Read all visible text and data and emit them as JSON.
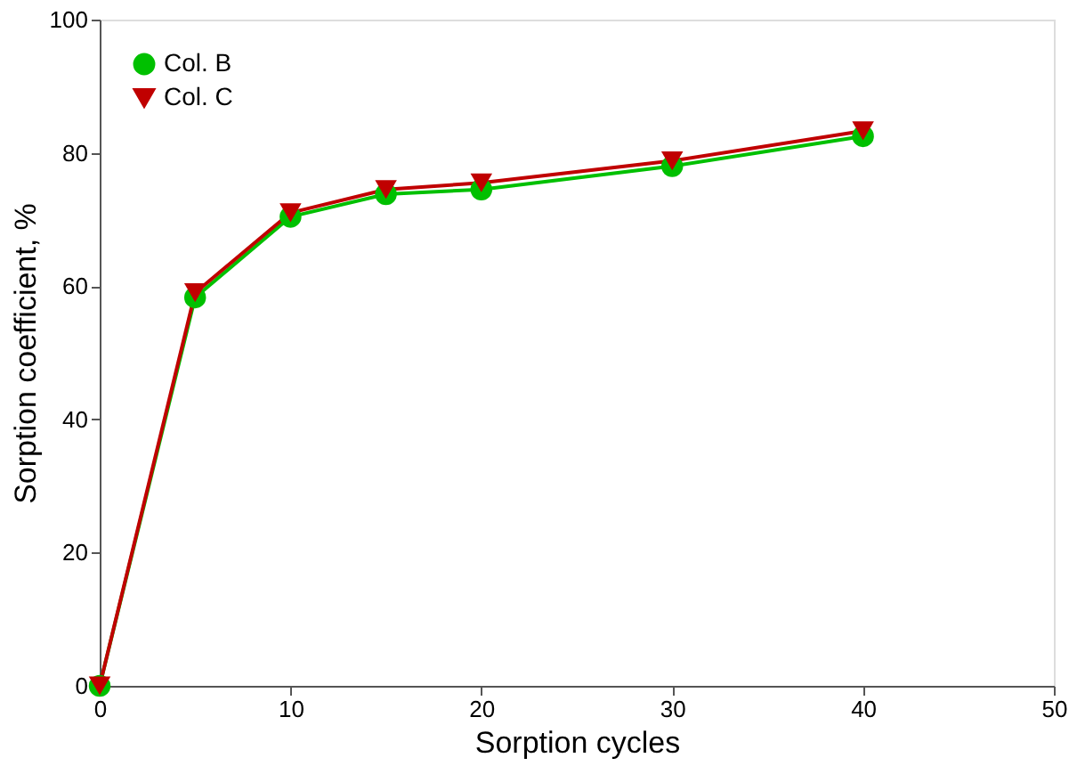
{
  "chart_data": {
    "type": "line",
    "xlabel": "Sorption cycles",
    "ylabel": "Sorption coefficient, %",
    "x": [
      0,
      5,
      10,
      15,
      20,
      30,
      40
    ],
    "series": [
      {
        "name": "Col. B",
        "color": "#00c000",
        "marker": "circle",
        "values": [
          0,
          58.3,
          70.4,
          73.8,
          74.5,
          78,
          82.5
        ]
      },
      {
        "name": "Col. C",
        "color": "#c00000",
        "marker": "triangle",
        "values": [
          0,
          59,
          71,
          74.5,
          75.5,
          78.8,
          83.3
        ]
      }
    ],
    "xlim": [
      0,
      50
    ],
    "xticks": [
      0,
      10,
      20,
      30,
      40,
      50
    ],
    "ylim": [
      0,
      100
    ],
    "yticks": [
      0,
      20,
      40,
      60,
      80,
      100
    ],
    "grid": false,
    "legend": "top left",
    "line_style": "solid"
  }
}
